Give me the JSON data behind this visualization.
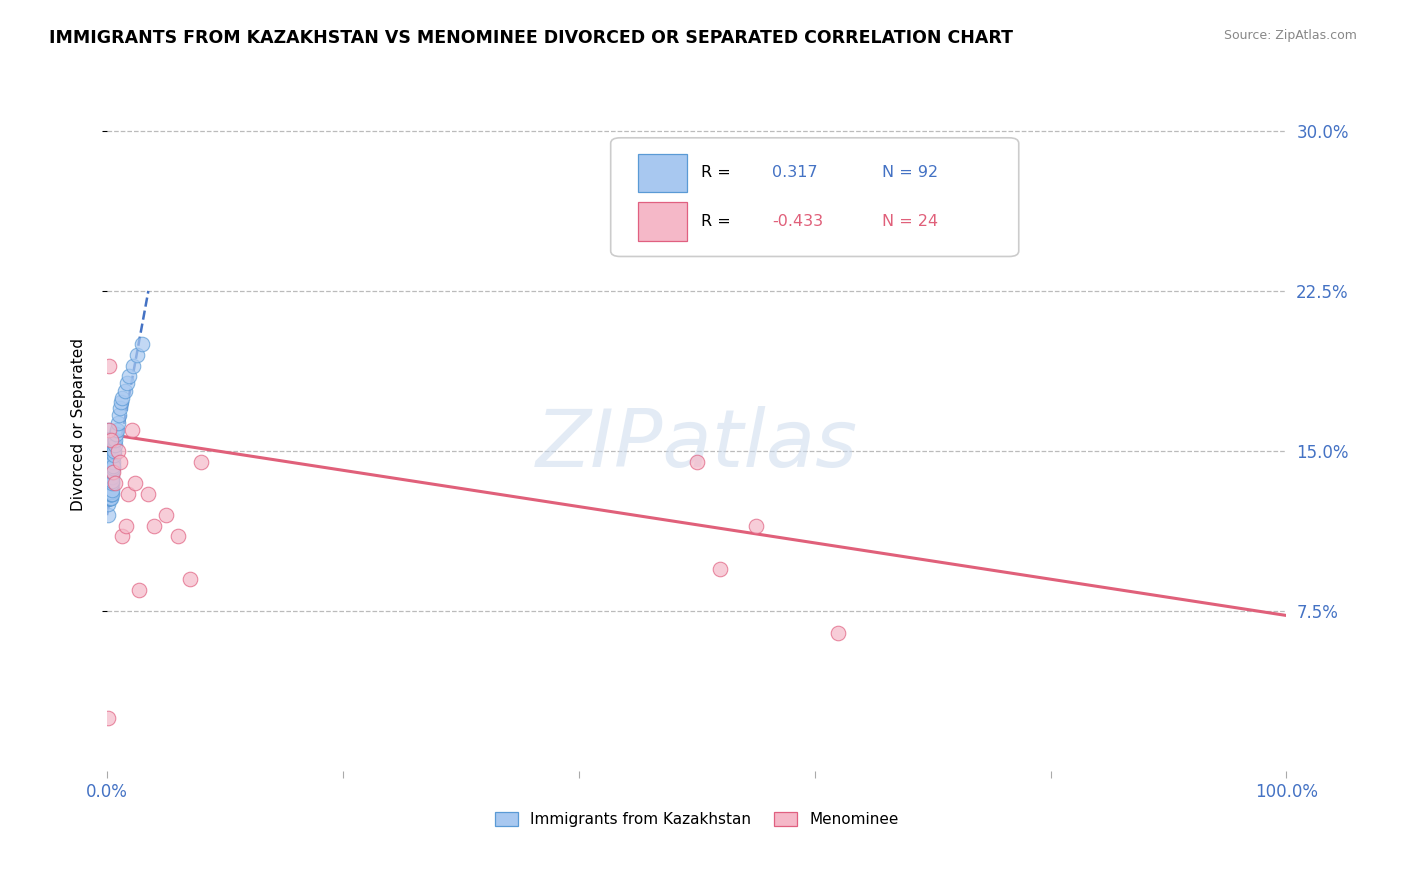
{
  "title": "IMMIGRANTS FROM KAZAKHSTAN VS MENOMINEE DIVORCED OR SEPARATED CORRELATION CHART",
  "source": "Source: ZipAtlas.com",
  "ylabel": "Divorced or Separated",
  "xlim": [
    0.0,
    1.0
  ],
  "ylim": [
    0.0,
    0.325
  ],
  "xticks": [
    0.0,
    0.2,
    0.4,
    0.6,
    0.8,
    1.0
  ],
  "xtick_labels": [
    "0.0%",
    "",
    "",
    "",
    "",
    "100.0%"
  ],
  "ytick_vals": [
    0.075,
    0.15,
    0.225,
    0.3
  ],
  "ytick_labels": [
    "7.5%",
    "15.0%",
    "22.5%",
    "30.0%"
  ],
  "grid_color": "#bbbbbb",
  "bg_color": "#ffffff",
  "blue_fill": "#a8c8f0",
  "blue_edge": "#5a9ad5",
  "blue_line": "#4472c4",
  "pink_fill": "#f5b8c8",
  "pink_edge": "#e06080",
  "pink_line": "#e0607a",
  "R_blue": 0.317,
  "N_blue": 92,
  "R_pink": -0.433,
  "N_pink": 24,
  "legend_blue": "Immigrants from Kazakhstan",
  "legend_pink": "Menominee",
  "watermark": "ZIPatlas",
  "blue_x": [
    0.0003,
    0.0004,
    0.0005,
    0.0005,
    0.0006,
    0.0006,
    0.0007,
    0.0007,
    0.0007,
    0.0008,
    0.0008,
    0.0008,
    0.0009,
    0.0009,
    0.001,
    0.001,
    0.001,
    0.001,
    0.0011,
    0.0011,
    0.0012,
    0.0012,
    0.0012,
    0.0013,
    0.0013,
    0.0013,
    0.0014,
    0.0014,
    0.0015,
    0.0015,
    0.0015,
    0.0016,
    0.0016,
    0.0017,
    0.0017,
    0.0018,
    0.0018,
    0.0019,
    0.0019,
    0.002,
    0.002,
    0.0021,
    0.0021,
    0.0022,
    0.0022,
    0.0023,
    0.0023,
    0.0024,
    0.0024,
    0.0025,
    0.0025,
    0.0026,
    0.0026,
    0.0027,
    0.0028,
    0.0028,
    0.0029,
    0.003,
    0.003,
    0.0031,
    0.0032,
    0.0033,
    0.0034,
    0.0035,
    0.0036,
    0.0037,
    0.0038,
    0.0039,
    0.004,
    0.0042,
    0.0043,
    0.0045,
    0.0047,
    0.005,
    0.0052,
    0.0055,
    0.006,
    0.0065,
    0.007,
    0.0075,
    0.008,
    0.009,
    0.01,
    0.011,
    0.012,
    0.013,
    0.015,
    0.017,
    0.019,
    0.022,
    0.025,
    0.03
  ],
  "blue_y": [
    0.135,
    0.145,
    0.13,
    0.155,
    0.14,
    0.12,
    0.15,
    0.155,
    0.16,
    0.13,
    0.145,
    0.155,
    0.14,
    0.15,
    0.125,
    0.135,
    0.145,
    0.155,
    0.13,
    0.14,
    0.128,
    0.135,
    0.14,
    0.13,
    0.135,
    0.142,
    0.128,
    0.135,
    0.13,
    0.135,
    0.14,
    0.128,
    0.133,
    0.13,
    0.135,
    0.128,
    0.132,
    0.13,
    0.135,
    0.128,
    0.133,
    0.13,
    0.135,
    0.128,
    0.132,
    0.13,
    0.134,
    0.128,
    0.133,
    0.13,
    0.135,
    0.128,
    0.132,
    0.13,
    0.128,
    0.133,
    0.13,
    0.128,
    0.133,
    0.13,
    0.13,
    0.132,
    0.13,
    0.135,
    0.133,
    0.131,
    0.13,
    0.132,
    0.135,
    0.138,
    0.136,
    0.14,
    0.142,
    0.145,
    0.143,
    0.148,
    0.15,
    0.153,
    0.155,
    0.158,
    0.16,
    0.163,
    0.167,
    0.17,
    0.173,
    0.175,
    0.178,
    0.182,
    0.185,
    0.19,
    0.195,
    0.2
  ],
  "pink_x": [
    0.0005,
    0.002,
    0.003,
    0.005,
    0.007,
    0.009,
    0.011,
    0.013,
    0.016,
    0.018,
    0.021,
    0.024,
    0.027,
    0.035,
    0.04,
    0.05,
    0.06,
    0.07,
    0.08,
    0.5,
    0.52,
    0.55,
    0.62,
    0.002
  ],
  "pink_y": [
    0.025,
    0.16,
    0.155,
    0.14,
    0.135,
    0.15,
    0.145,
    0.11,
    0.115,
    0.13,
    0.16,
    0.135,
    0.085,
    0.13,
    0.115,
    0.12,
    0.11,
    0.09,
    0.145,
    0.145,
    0.095,
    0.115,
    0.065,
    0.19
  ],
  "blue_trend_x0": 0.0,
  "blue_trend_x1": 0.035,
  "blue_trend_y0": 0.12,
  "blue_trend_y1": 0.225,
  "pink_trend_x0": 0.0,
  "pink_trend_x1": 1.0,
  "pink_trend_y0": 0.158,
  "pink_trend_y1": 0.073
}
